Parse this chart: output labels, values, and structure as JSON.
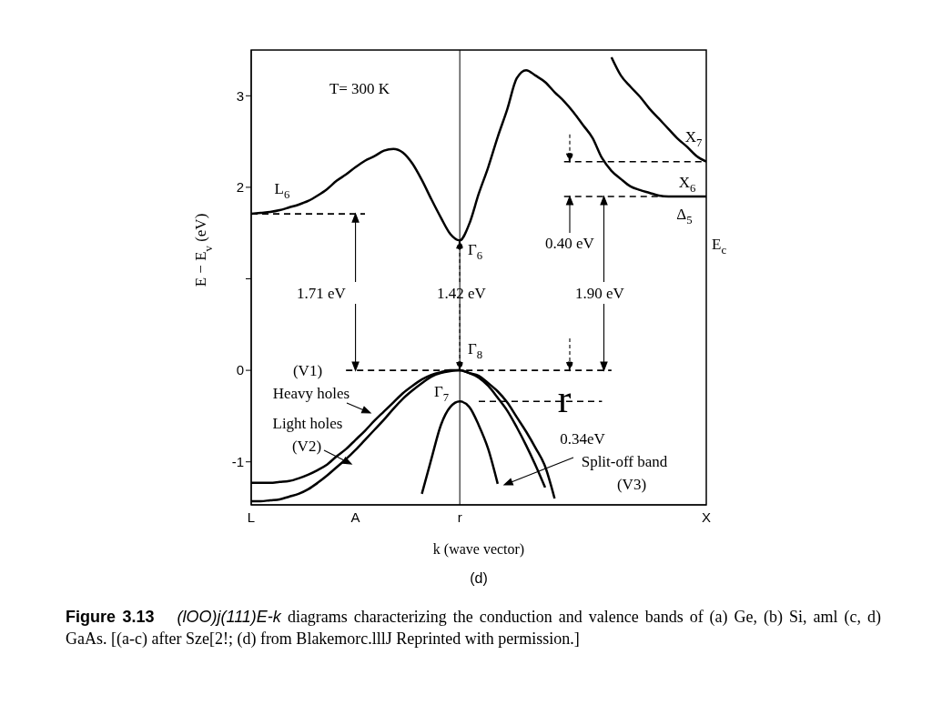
{
  "chart_data": {
    "type": "line",
    "subtitle": "(d)",
    "xlabel": "k (wave vector)",
    "ylabel": "E − E$_{v}$ (eV)",
    "categories": [
      "L",
      null,
      null,
      null,
      null,
      null,
      null,
      null,
      null,
      null,
      null,
      "A",
      null,
      null,
      null,
      null,
      null,
      null,
      null,
      null,
      null,
      null,
      "r",
      null,
      null,
      null,
      null,
      null,
      null,
      null,
      null,
      null,
      null,
      null,
      null,
      null,
      null,
      null,
      null,
      null,
      null,
      null,
      null,
      null,
      null,
      null,
      null,
      null,
      "X"
    ],
    "ylim": [
      -1.47,
      3.5
    ],
    "yticks": [
      -1,
      0,
      {
        "value": 1,
        "label": null
      },
      2,
      3
    ],
    "marker": "none",
    "series": [
      {
        "color": "#000000",
        "values": [
          1.71,
          1.72,
          1.73,
          1.75,
          1.78,
          1.81,
          1.85,
          1.91,
          1.98,
          2.07,
          2.14,
          2.22,
          2.29,
          2.34,
          2.4,
          2.42,
          2.38,
          2.26,
          2.08,
          1.87,
          1.67,
          1.49,
          1.42,
          1.6,
          1.93,
          2.22,
          2.55,
          2.85,
          3.19,
          3.28,
          3.22,
          3.15,
          3.04,
          2.94,
          2.82,
          2.68,
          2.54,
          2.32,
          2.18,
          2.09,
          2.01,
          1.97,
          1.94,
          1.91,
          1.9,
          1.9,
          1.9,
          1.9,
          1.9
        ]
      },
      {
        "color": "#000000",
        "values": [
          null,
          null,
          null,
          null,
          null,
          null,
          null,
          null,
          null,
          null,
          null,
          null,
          null,
          null,
          null,
          null,
          null,
          null,
          null,
          null,
          null,
          null,
          null,
          null,
          null,
          null,
          null,
          null,
          null,
          null,
          null,
          null,
          null,
          null,
          null,
          null,
          null,
          null,
          3.42,
          3.22,
          3.1,
          2.99,
          2.86,
          2.75,
          2.64,
          2.53,
          2.44,
          2.34,
          2.28
        ]
      },
      {
        "color": "#000000",
        "values": [
          -1.23,
          -1.23,
          -1.23,
          -1.22,
          -1.21,
          -1.18,
          -1.14,
          -1.09,
          -1.03,
          -0.94,
          -0.86,
          -0.76,
          -0.66,
          -0.55,
          -0.45,
          -0.35,
          -0.25,
          -0.17,
          -0.1,
          -0.05,
          -0.02,
          0,
          0,
          -0.03,
          -0.06,
          -0.14,
          -0.23,
          -0.35,
          -0.51,
          -0.67,
          -0.85,
          -1.05,
          -1.4,
          null,
          null,
          null,
          null,
          null,
          null,
          null,
          null,
          null,
          null,
          null,
          null,
          null,
          null,
          null,
          null
        ]
      },
      {
        "color": "#000000",
        "values": [
          -1.43,
          -1.43,
          -1.42,
          -1.41,
          -1.38,
          -1.35,
          -1.3,
          -1.23,
          -1.15,
          -1.06,
          -0.97,
          -0.87,
          -0.76,
          -0.65,
          -0.54,
          -0.42,
          -0.31,
          -0.22,
          -0.14,
          -0.07,
          -0.03,
          -0.01,
          0,
          -0.03,
          -0.08,
          -0.17,
          -0.3,
          -0.44,
          -0.62,
          -0.82,
          -1.04,
          -1.28,
          null,
          null,
          null,
          null,
          null,
          null,
          null,
          null,
          null,
          null,
          null,
          null,
          null,
          null,
          null,
          null,
          null
        ]
      },
      {
        "color": "#000000",
        "values": [
          null,
          null,
          null,
          null,
          null,
          null,
          null,
          null,
          null,
          null,
          null,
          null,
          null,
          null,
          null,
          null,
          null,
          null,
          -1.35,
          -0.97,
          -0.6,
          -0.4,
          -0.34,
          -0.4,
          -0.6,
          -0.86,
          -1.24,
          null,
          null,
          null,
          null,
          null,
          null,
          null,
          null,
          null,
          null,
          null,
          null,
          null,
          null,
          null,
          null,
          null,
          null,
          null,
          null,
          null,
          null
        ]
      },
      {
        "color": "#000000",
        "line_style": "dashed",
        "values": [
          1.71,
          1.71,
          1.71,
          1.71,
          1.71,
          1.71,
          1.71,
          1.71,
          1.71,
          1.71,
          1.71,
          1.71,
          1.71,
          null,
          null,
          null,
          null,
          null,
          null,
          null,
          null,
          null,
          null,
          null,
          null,
          null,
          null,
          null,
          null,
          null,
          null,
          null,
          null,
          null,
          null,
          null,
          null,
          null,
          null,
          null,
          null,
          null,
          null,
          null,
          null,
          null,
          null,
          null,
          null
        ]
      },
      {
        "color": "#000000",
        "line_style": "dashed",
        "values": [
          null,
          null,
          null,
          null,
          null,
          null,
          null,
          null,
          null,
          null,
          0,
          0,
          0,
          0,
          0,
          0,
          0,
          0,
          0,
          0,
          0,
          0,
          0,
          0,
          0,
          0,
          0,
          0,
          0,
          0,
          0,
          0,
          0,
          0,
          0,
          0,
          0,
          0,
          0,
          null,
          null,
          null,
          null,
          null,
          null,
          null,
          null,
          null,
          null
        ]
      },
      {
        "color": "#000000",
        "line_style": "dashed",
        "values": [
          null,
          null,
          null,
          null,
          null,
          null,
          null,
          null,
          null,
          null,
          null,
          null,
          null,
          null,
          null,
          null,
          null,
          null,
          null,
          null,
          null,
          null,
          null,
          null,
          null,
          null,
          null,
          null,
          null,
          null,
          null,
          null,
          null,
          2.28,
          2.28,
          2.28,
          2.28,
          2.28,
          2.28,
          2.28,
          2.28,
          2.28,
          2.28,
          2.28,
          2.28,
          2.28,
          2.28,
          2.28,
          2.28
        ]
      },
      {
        "color": "#000000",
        "line_style": "dashed",
        "values": [
          null,
          null,
          null,
          null,
          null,
          null,
          null,
          null,
          null,
          null,
          null,
          null,
          null,
          null,
          null,
          null,
          null,
          null,
          null,
          null,
          null,
          null,
          null,
          null,
          null,
          null,
          null,
          null,
          null,
          null,
          null,
          null,
          null,
          1.9,
          1.9,
          1.9,
          1.9,
          1.9,
          1.9,
          1.9,
          1.9,
          1.9,
          1.9,
          1.9,
          1.9,
          1.9,
          1.9,
          1.9,
          1.9
        ]
      },
      {
        "color": "#000000",
        "line_style": "dashed",
        "values": [
          null,
          null,
          null,
          null,
          null,
          null,
          null,
          null,
          null,
          null,
          null,
          null,
          null,
          null,
          null,
          null,
          null,
          null,
          null,
          null,
          null,
          null,
          null,
          null,
          -0.34,
          -0.34,
          -0.34,
          -0.34,
          -0.34,
          -0.34,
          -0.34,
          -0.34,
          -0.34,
          -0.34,
          -0.34,
          -0.34,
          -0.34,
          -0.34,
          null,
          null,
          null,
          null,
          null,
          null,
          null,
          null,
          null,
          null,
          null
        ]
      }
    ],
    "ref_lines": [
      {
        "axis": "x",
        "value": "r",
        "color": "#000000"
      }
    ],
    "annotations": [
      "T= 300 K",
      "L$_{6}$",
      "Γ$_{6}$",
      {
        "text": "1.71 eV",
        "x": "A",
        "y": 1.71
      },
      {
        "text": "1.42 eV",
        "x": "r",
        "y": 1.42
      },
      {
        "text": "1.90 eV",
        "y": 1.9
      },
      "0.40 eV",
      "X$_{7}$",
      "X$_{6}$",
      "Δ$_{5}$",
      "E$_{c}$",
      {
        "text": "Γ$_{8}$",
        "x": "r",
        "y": 0
      },
      "(V1)",
      "Heavy holes",
      "Γ$_{7}$",
      "Light holes",
      "(V2)",
      "r",
      "0.34eV",
      "Split-off band",
      "(V3)",
      "Figure 3.13",
      "(lOO)j(111)E-k",
      "diagrams characterizing the conduction and valence bands of (a) Ge, (b) Si, aml (c, d) GaAs. [(a-c) after Sze[2!; (d) from Blakemorc.lllJ Reprinted with permission.]"
    ]
  }
}
